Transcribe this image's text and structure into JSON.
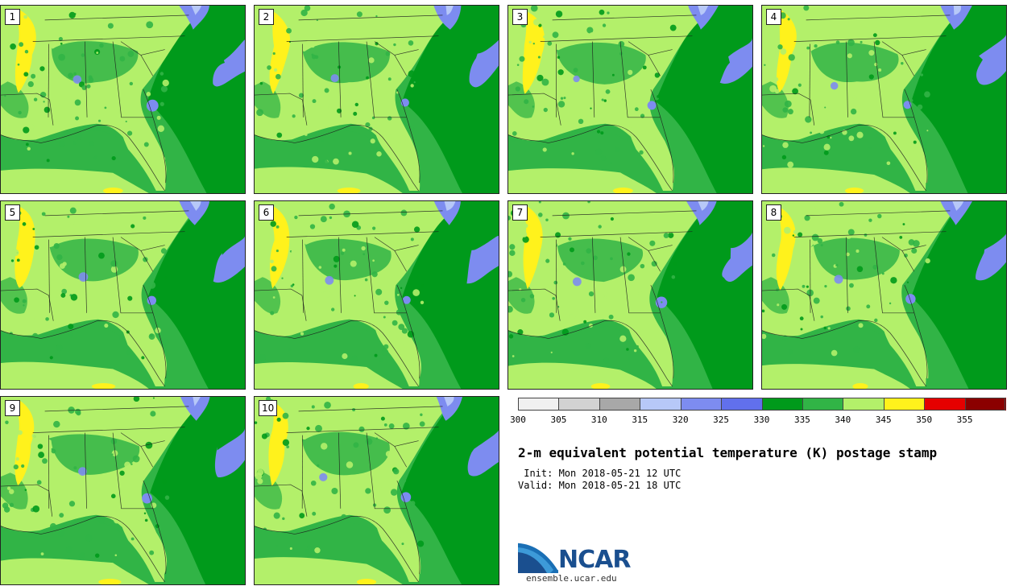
{
  "panels": [
    {
      "label": "1"
    },
    {
      "label": "2"
    },
    {
      "label": "3"
    },
    {
      "label": "4"
    },
    {
      "label": "5"
    },
    {
      "label": "6"
    },
    {
      "label": "7"
    },
    {
      "label": "8"
    },
    {
      "label": "9"
    },
    {
      "label": "10"
    }
  ],
  "map_colors": {
    "band_330_335": "#009a1b",
    "band_335_340": "#31b446",
    "band_340_345": "#b3f06a",
    "band_345_350": "#fff21c",
    "band_320_325": "#7d8cf0",
    "band_315_320": "#b7c8f8",
    "state_line": "#1b1b1b"
  },
  "colorbar": {
    "colors": [
      "#f0f0f0",
      "#d2d2d2",
      "#a8a8a8",
      "#b7c8f8",
      "#7d8cf0",
      "#6170ec",
      "#009a1b",
      "#31b446",
      "#b3f06a",
      "#fff21c",
      "#e50000",
      "#8b0000"
    ],
    "labels": [
      "300",
      "305",
      "310",
      "315",
      "320",
      "325",
      "330",
      "335",
      "340",
      "345",
      "350",
      "355"
    ]
  },
  "title": "2-m equivalent potential temperature (K) postage stamp",
  "init_line": " Init: Mon 2018-05-21 12 UTC",
  "valid_line": "Valid: Mon 2018-05-21 18 UTC",
  "logo": {
    "text": "NCAR",
    "url": "ensemble.ucar.edu"
  }
}
